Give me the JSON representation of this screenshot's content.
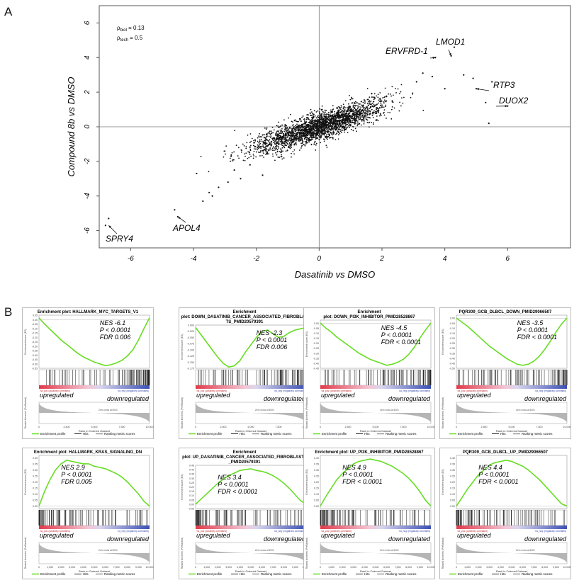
{
  "panel_a": {
    "letter": "A",
    "xlabel": "Dasatinib vs DMSO",
    "ylabel": "Compound 8b vs DMSO",
    "rho_biol": "ρ",
    "rho_biol_sub": "biol",
    "rho_biol_val": " = 0.13",
    "rho_tech": "ρ",
    "rho_tech_sub": "tech",
    "rho_tech_val": " = 0.5",
    "x_ticks": [
      "-6",
      "-4",
      "-2",
      "0",
      "2",
      "4",
      "6"
    ],
    "y_ticks": [
      "6",
      "4",
      "2",
      "0",
      "-2",
      "-4",
      "-6"
    ],
    "labels": [
      "ERVFRD-1",
      "LMOD1",
      "RTP3",
      "DUOX2",
      "SPRY4",
      "APOL4"
    ]
  },
  "panel_b": {
    "letter": "B",
    "ylabel_es": "Enrichment score (ES)",
    "ylabel_rank": "Ranked list metric (PreRanked)",
    "xlabel": "Rank in Ordered Dataset",
    "pos_corr": "'na_pos' (positively correlated)",
    "neg_corr": "'na_neg' (negatively correlated)",
    "zero_cross": "Zero cross at 5000",
    "upregulated": "upregulated",
    "downregulated": "downregulated",
    "legend_profile": "Enrichment profile",
    "legend_hits": "Hits",
    "legend_metric": "Ranking metric scores",
    "x_ticks_a": [
      "0",
      "2,500",
      "5,000",
      "7,500",
      "10,000"
    ],
    "x_ticks_b": [
      "0",
      "1,000",
      "2,000",
      "3,000",
      "4,000",
      "5,000",
      "6,000",
      "7,000",
      "8,000",
      "9,000",
      "10,000"
    ]
  },
  "chart_data": [
    {
      "type": "scatter",
      "title": "",
      "xlabel": "Dasatinib vs DMSO",
      "ylabel": "Compound 8b vs DMSO",
      "xlim": [
        -7,
        8
      ],
      "ylim": [
        -7,
        7
      ],
      "grid": false,
      "reference_lines": {
        "x": 0,
        "y": 0
      },
      "annotations": [
        {
          "text": "ρbiol = 0.13"
        },
        {
          "text": "ρtech = 0.5"
        }
      ],
      "labeled_points": [
        {
          "label": "ERVFRD-1",
          "x": 3.7,
          "y": 4.0
        },
        {
          "label": "LMOD1",
          "x": 4.2,
          "y": 4.1
        },
        {
          "label": "RTP3",
          "x": 5.0,
          "y": 2.2
        },
        {
          "label": "DUOX2",
          "x": 6.0,
          "y": 1.2
        },
        {
          "label": "SPRY4",
          "x": -6.7,
          "y": -5.7
        },
        {
          "label": "APOL4",
          "x": -4.5,
          "y": -5.2
        }
      ],
      "outliers": [
        {
          "x": 3.7,
          "y": 4.0
        },
        {
          "x": 4.2,
          "y": 4.1
        },
        {
          "x": 4.3,
          "y": 4.6
        },
        {
          "x": 4.9,
          "y": 2.8
        },
        {
          "x": 5.0,
          "y": 2.2
        },
        {
          "x": 5.5,
          "y": 2.6
        },
        {
          "x": 6.0,
          "y": 1.2
        },
        {
          "x": 5.3,
          "y": 1.4
        },
        {
          "x": 4.0,
          "y": 2.2
        },
        {
          "x": 3.6,
          "y": 2.9
        },
        {
          "x": 4.6,
          "y": 3.0
        },
        {
          "x": 5.4,
          "y": 0.2
        },
        {
          "x": 3.1,
          "y": 2.6
        },
        {
          "x": 3.3,
          "y": 3.1
        },
        {
          "x": -6.7,
          "y": -5.3
        },
        {
          "x": -6.8,
          "y": -5.7
        },
        {
          "x": -4.6,
          "y": -4.8
        },
        {
          "x": -4.5,
          "y": -5.2
        },
        {
          "x": -3.7,
          "y": -4.3
        },
        {
          "x": -3.5,
          "y": -3.8
        },
        {
          "x": -3.2,
          "y": -3.5
        },
        {
          "x": -3.4,
          "y": -4.0
        },
        {
          "x": -2.9,
          "y": -3.2
        },
        {
          "x": -2.7,
          "y": -2.5
        },
        {
          "x": -2.5,
          "y": -3.0
        },
        {
          "x": -3.9,
          "y": -2.7
        },
        {
          "x": -2.2,
          "y": -2.2
        },
        {
          "x": -1.8,
          "y": -2.8
        },
        {
          "x": -2.8,
          "y": -1.7
        }
      ]
    },
    {
      "type": "line",
      "title": "Enrichment plot: HALLMARK_MYC_TARGETS_V1",
      "annotations": [
        "NES -6.1",
        "P < 0.0001",
        "FDR 0.006"
      ],
      "y_ticks": [
        "0.05",
        "0.00",
        "-0.05",
        "-0.10",
        "-0.15",
        "-0.20",
        "-0.25",
        "-0.30",
        "-0.35",
        "-0.40",
        "-0.45",
        "-0.50",
        "-0.55"
      ],
      "ylim": [
        -0.55,
        0.05
      ],
      "x": [
        0,
        500,
        1000,
        1500,
        2000,
        2500,
        3000,
        3500,
        4000,
        4500,
        5000,
        5500,
        6000,
        6500,
        7000,
        7500,
        8000,
        8500,
        9000,
        9500,
        10000
      ],
      "y": [
        0.02,
        -0.05,
        -0.11,
        -0.17,
        -0.23,
        -0.28,
        -0.33,
        -0.38,
        -0.42,
        -0.45,
        -0.48,
        -0.5,
        -0.52,
        -0.51,
        -0.49,
        -0.46,
        -0.41,
        -0.34,
        -0.23,
        -0.1,
        0.02
      ]
    },
    {
      "type": "line",
      "title": "Enrichment plot: DOWN_DASATINIB_CANCER_ASSOCIATED_FIBROBLASTS_PMID20579391",
      "annotations": [
        "NES -2.3",
        "P < 0.0001",
        "FDR 0.006"
      ],
      "y_ticks": [
        "0.000",
        "-0.025",
        "-0.050",
        "-0.075",
        "-0.100",
        "-0.125",
        "-0.150",
        "-0.175"
      ],
      "ylim": [
        -0.175,
        0.0
      ],
      "x": [
        0,
        500,
        1000,
        1500,
        2000,
        2500,
        3000,
        3500,
        4000,
        4500,
        5000,
        5500,
        6000,
        6500,
        7000,
        7500,
        8000,
        8500,
        9000,
        9500,
        10000
      ],
      "y": [
        -0.01,
        -0.04,
        -0.07,
        -0.1,
        -0.13,
        -0.155,
        -0.17,
        -0.165,
        -0.145,
        -0.11,
        -0.08,
        -0.05,
        -0.025,
        -0.02,
        -0.035,
        -0.05,
        -0.045,
        -0.03,
        -0.02,
        -0.015,
        -0.01
      ]
    },
    {
      "type": "line",
      "title": "Enrichment plot: DOWN_PI3K_INHIBITOR_PMID28528867",
      "annotations": [
        "NES -4.5",
        "P < 0.0001",
        "FDR < 0.0001"
      ],
      "y_ticks": [
        "0.00",
        "-0.05",
        "-0.10",
        "-0.15",
        "-0.20",
        "-0.25",
        "-0.30",
        "-0.35",
        "-0.40",
        "-0.45"
      ],
      "ylim": [
        -0.45,
        0.03
      ],
      "x": [
        0,
        500,
        1000,
        1500,
        2000,
        2500,
        3000,
        3500,
        4000,
        4500,
        5000,
        5500,
        6000,
        6500,
        7000,
        7500,
        8000,
        8500,
        9000,
        9500,
        10000
      ],
      "y": [
        0.0,
        -0.05,
        -0.09,
        -0.14,
        -0.18,
        -0.22,
        -0.26,
        -0.3,
        -0.33,
        -0.36,
        -0.38,
        -0.4,
        -0.42,
        -0.41,
        -0.39,
        -0.36,
        -0.31,
        -0.24,
        -0.15,
        -0.07,
        0.0
      ]
    },
    {
      "type": "line",
      "title": "PQR309_GCB_DLBCL_DOWN_PMID29066507",
      "annotations": [
        "NES -3.5",
        "P < 0.0001",
        "FDR < 0.0001"
      ],
      "y_ticks": [
        "0.00",
        "-0.05",
        "-0.10",
        "-0.15",
        "-0.20",
        "-0.25",
        "-0.30",
        "-0.35",
        "-0.40",
        "-0.45",
        "-0.50"
      ],
      "ylim": [
        -0.5,
        0.03
      ],
      "x": [
        0,
        500,
        1000,
        1500,
        2000,
        2500,
        3000,
        3500,
        4000,
        4500,
        5000,
        5500,
        6000,
        6500,
        7000,
        7500,
        8000,
        8500,
        9000,
        9500,
        10000
      ],
      "y": [
        0.0,
        -0.04,
        -0.08,
        -0.13,
        -0.18,
        -0.23,
        -0.28,
        -0.32,
        -0.36,
        -0.4,
        -0.43,
        -0.46,
        -0.47,
        -0.46,
        -0.43,
        -0.38,
        -0.31,
        -0.23,
        -0.14,
        -0.06,
        0.0
      ]
    },
    {
      "type": "line",
      "title": "Enrichment plot: HALLMARK_KRAS_SIGNALING_DN",
      "annotations": [
        "NES 2.9",
        "P < 0.0001",
        "FDR 0.005"
      ],
      "y_ticks": [
        "0.40",
        "0.35",
        "0.30",
        "0.25",
        "0.20",
        "0.15",
        "0.10",
        "0.05",
        "0.00"
      ],
      "ylim": [
        -0.02,
        0.42
      ],
      "x": [
        0,
        500,
        1000,
        1500,
        2000,
        2500,
        3000,
        3500,
        4000,
        4500,
        5000,
        5500,
        6000,
        6500,
        7000,
        7500,
        8000,
        8500,
        9000,
        9500,
        10000
      ],
      "y": [
        0.0,
        0.12,
        0.22,
        0.3,
        0.35,
        0.38,
        0.37,
        0.36,
        0.35,
        0.35,
        0.33,
        0.32,
        0.31,
        0.29,
        0.27,
        0.24,
        0.2,
        0.15,
        0.1,
        0.04,
        0.0
      ]
    },
    {
      "type": "line",
      "title": "Enrichment plot: UP_DASATINIB_CANCER_ASSOCIATED_FIBROBLASTS_PMID20579391",
      "annotations": [
        "NES 3.4",
        "P < 0.0001",
        "FDR < 0.0001"
      ],
      "y_ticks": [
        "0.45",
        "0.40",
        "0.35",
        "0.30",
        "0.25",
        "0.20",
        "0.15",
        "0.10",
        "0.05",
        "0.00",
        "-0.05"
      ],
      "ylim": [
        -0.05,
        0.45
      ],
      "x": [
        0,
        500,
        1000,
        1500,
        2000,
        2500,
        3000,
        3500,
        4000,
        4500,
        5000,
        5500,
        6000,
        6500,
        7000,
        7500,
        8000,
        8500,
        9000,
        9500,
        10000
      ],
      "y": [
        0.0,
        0.06,
        0.12,
        0.18,
        0.24,
        0.29,
        0.33,
        0.36,
        0.39,
        0.4,
        0.41,
        0.39,
        0.38,
        0.36,
        0.33,
        0.29,
        0.24,
        0.18,
        0.11,
        0.04,
        0.0
      ]
    },
    {
      "type": "line",
      "title": "Enrichment plot: UP_PI3K_INHIBITOR_PMID28528867",
      "annotations": [
        "NES 4.9",
        "P < 0.0001",
        "FDR < 0.0001"
      ],
      "y_ticks": [
        "0.40",
        "0.35",
        "0.30",
        "0.25",
        "0.20",
        "0.15",
        "0.10",
        "0.05",
        "0.00"
      ],
      "ylim": [
        -0.02,
        0.42
      ],
      "x": [
        0,
        500,
        1000,
        1500,
        2000,
        2500,
        3000,
        3500,
        4000,
        4500,
        5000,
        5500,
        6000,
        6500,
        7000,
        7500,
        8000,
        8500,
        9000,
        9500,
        10000
      ],
      "y": [
        0.0,
        0.08,
        0.15,
        0.22,
        0.27,
        0.31,
        0.35,
        0.37,
        0.38,
        0.39,
        0.38,
        0.37,
        0.35,
        0.33,
        0.3,
        0.27,
        0.23,
        0.18,
        0.12,
        0.05,
        0.0
      ]
    },
    {
      "type": "line",
      "title": "PQR309_GCB_DLBCL_UP_PMID29066507",
      "annotations": [
        "NES 4.4",
        "P < 0.0001",
        "FDR < 0.0001"
      ],
      "y_ticks": [
        "0.40",
        "0.35",
        "0.30",
        "0.25",
        "0.20",
        "0.15",
        "0.10",
        "0.05",
        "0.00"
      ],
      "ylim": [
        -0.02,
        0.42
      ],
      "x": [
        0,
        500,
        1000,
        1500,
        2000,
        2500,
        3000,
        3500,
        4000,
        4500,
        5000,
        5500,
        6000,
        6500,
        7000,
        7500,
        8000,
        8500,
        9000,
        9500,
        10000
      ],
      "y": [
        0.0,
        0.07,
        0.14,
        0.2,
        0.26,
        0.3,
        0.34,
        0.36,
        0.37,
        0.38,
        0.37,
        0.35,
        0.33,
        0.3,
        0.26,
        0.22,
        0.17,
        0.12,
        0.07,
        0.02,
        0.0
      ]
    }
  ]
}
